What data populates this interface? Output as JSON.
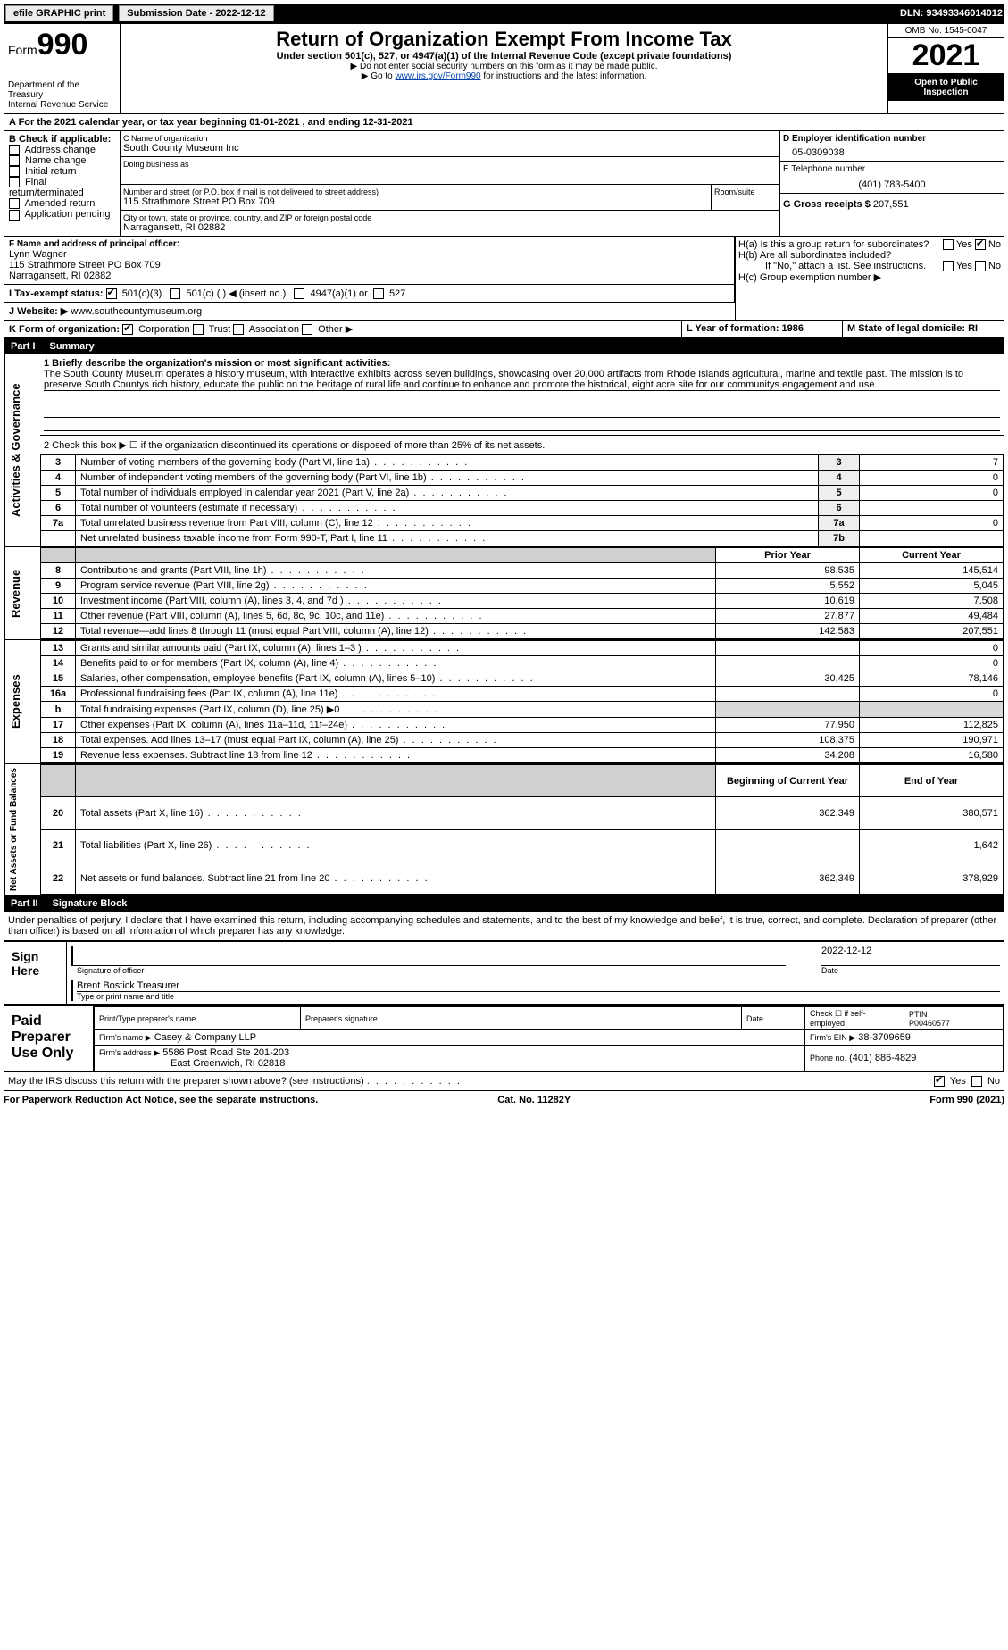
{
  "topbar": {
    "efile": "efile GRAPHIC print",
    "subdate_label": "Submission Date - 2022-12-12",
    "dln": "DLN: 93493346014012"
  },
  "header": {
    "form_label": "Form",
    "form_num": "990",
    "title": "Return of Organization Exempt From Income Tax",
    "subtitle": "Under section 501(c), 527, or 4947(a)(1) of the Internal Revenue Code (except private foundations)",
    "note1": "▶ Do not enter social security numbers on this form as it may be made public.",
    "note2_prefix": "▶ Go to ",
    "note2_link": "www.irs.gov/Form990",
    "note2_suffix": " for instructions and the latest information.",
    "omb": "OMB No. 1545-0047",
    "year": "2021",
    "open": "Open to Public Inspection",
    "dept": "Department of the Treasury",
    "irs": "Internal Revenue Service"
  },
  "sectionA": {
    "label": "A For the 2021 calendar year, or tax year beginning 01-01-2021    , and ending 12-31-2021"
  },
  "sectionB": {
    "label": "B Check if applicable:",
    "opts": [
      "Address change",
      "Name change",
      "Initial return",
      "Final return/terminated",
      "Amended return",
      "Application pending"
    ]
  },
  "sectionC": {
    "name_label": "C Name of organization",
    "name": "South County Museum Inc",
    "dba_label": "Doing business as",
    "addr_label": "Number and street (or P.O. box if mail is not delivered to street address)",
    "room_label": "Room/suite",
    "addr": "115 Strathmore Street PO Box 709",
    "city_label": "City or town, state or province, country, and ZIP or foreign postal code",
    "city": "Narragansett, RI  02882"
  },
  "sectionD": {
    "label": "D Employer identification number",
    "val": "05-0309038"
  },
  "sectionE": {
    "label": "E Telephone number",
    "val": "(401) 783-5400"
  },
  "sectionG": {
    "label": "G Gross receipts $",
    "val": "207,551"
  },
  "sectionF": {
    "label": "F Name and address of principal officer:",
    "name": "Lynn Wagner",
    "addr1": "115 Strathmore Street PO Box 709",
    "addr2": "Narragansett, RI  02882"
  },
  "sectionH": {
    "a": "H(a)  Is this a group return for subordinates?",
    "b": "H(b)  Are all subordinates included?",
    "bnote": "If \"No,\" attach a list. See instructions.",
    "c": "H(c)  Group exemption number ▶",
    "yes": "Yes",
    "no": "No"
  },
  "sectionI": {
    "label": "I    Tax-exempt status:",
    "t1": "501(c)(3)",
    "t2": "501(c) (  ) ◀ (insert no.)",
    "t3": "4947(a)(1) or",
    "t4": "527"
  },
  "sectionJ": {
    "label": "J    Website: ▶",
    "val": "www.southcountymuseum.org"
  },
  "sectionK": {
    "label": "K Form of organization:",
    "o1": "Corporation",
    "o2": "Trust",
    "o3": "Association",
    "o4": "Other ▶"
  },
  "sectionL": {
    "label": "L Year of formation: 1986"
  },
  "sectionM": {
    "label": "M State of legal domicile: RI"
  },
  "part1": {
    "num": "Part I",
    "title": "Summary"
  },
  "summary": {
    "line1_label": "1 Briefly describe the organization's mission or most significant activities:",
    "line1_text": "The South County Museum operates a history museum, with interactive exhibits across seven buildings, showcasing over 20,000 artifacts from Rhode Islands agricultural, marine and textile past. The mission is to preserve South Countys rich history, educate the public on the heritage of rural life and continue to enhance and promote the historical, eight acre site for our communitys engagement and use.",
    "line2": "2  Check this box ▶ ☐ if the organization discontinued its operations or disposed of more than 25% of its net assets.",
    "rows_ag": [
      {
        "n": "3",
        "label": "Number of voting members of the governing body (Part VI, line 1a)",
        "box": "3",
        "val": "7"
      },
      {
        "n": "4",
        "label": "Number of independent voting members of the governing body (Part VI, line 1b)",
        "box": "4",
        "val": "0"
      },
      {
        "n": "5",
        "label": "Total number of individuals employed in calendar year 2021 (Part V, line 2a)",
        "box": "5",
        "val": "0"
      },
      {
        "n": "6",
        "label": "Total number of volunteers (estimate if necessary)",
        "box": "6",
        "val": ""
      },
      {
        "n": "7a",
        "label": "Total unrelated business revenue from Part VIII, column (C), line 12",
        "box": "7a",
        "val": "0"
      },
      {
        "n": "",
        "label": "Net unrelated business taxable income from Form 990-T, Part I, line 11",
        "box": "7b",
        "val": ""
      }
    ],
    "col_prior": "Prior Year",
    "col_curr": "Current Year",
    "rows_rev": [
      {
        "n": "8",
        "label": "Contributions and grants (Part VIII, line 1h)",
        "p": "98,535",
        "c": "145,514"
      },
      {
        "n": "9",
        "label": "Program service revenue (Part VIII, line 2g)",
        "p": "5,552",
        "c": "5,045"
      },
      {
        "n": "10",
        "label": "Investment income (Part VIII, column (A), lines 3, 4, and 7d )",
        "p": "10,619",
        "c": "7,508"
      },
      {
        "n": "11",
        "label": "Other revenue (Part VIII, column (A), lines 5, 6d, 8c, 9c, 10c, and 11e)",
        "p": "27,877",
        "c": "49,484"
      },
      {
        "n": "12",
        "label": "Total revenue—add lines 8 through 11 (must equal Part VIII, column (A), line 12)",
        "p": "142,583",
        "c": "207,551"
      }
    ],
    "rows_exp": [
      {
        "n": "13",
        "label": "Grants and similar amounts paid (Part IX, column (A), lines 1–3 )",
        "p": "",
        "c": "0"
      },
      {
        "n": "14",
        "label": "Benefits paid to or for members (Part IX, column (A), line 4)",
        "p": "",
        "c": "0"
      },
      {
        "n": "15",
        "label": "Salaries, other compensation, employee benefits (Part IX, column (A), lines 5–10)",
        "p": "30,425",
        "c": "78,146"
      },
      {
        "n": "16a",
        "label": "Professional fundraising fees (Part IX, column (A), line 11e)",
        "p": "",
        "c": "0"
      },
      {
        "n": "b",
        "label": "Total fundraising expenses (Part IX, column (D), line 25) ▶0",
        "p": "SHADE",
        "c": "SHADE"
      },
      {
        "n": "17",
        "label": "Other expenses (Part IX, column (A), lines 11a–11d, 11f–24e)",
        "p": "77,950",
        "c": "112,825"
      },
      {
        "n": "18",
        "label": "Total expenses. Add lines 13–17 (must equal Part IX, column (A), line 25)",
        "p": "108,375",
        "c": "190,971"
      },
      {
        "n": "19",
        "label": "Revenue less expenses. Subtract line 18 from line 12",
        "p": "34,208",
        "c": "16,580"
      }
    ],
    "col_boy": "Beginning of Current Year",
    "col_eoy": "End of Year",
    "rows_na": [
      {
        "n": "20",
        "label": "Total assets (Part X, line 16)",
        "p": "362,349",
        "c": "380,571"
      },
      {
        "n": "21",
        "label": "Total liabilities (Part X, line 26)",
        "p": "",
        "c": "1,642"
      },
      {
        "n": "22",
        "label": "Net assets or fund balances. Subtract line 21 from line 20",
        "p": "362,349",
        "c": "378,929"
      }
    ]
  },
  "sidetabs": {
    "ag": "Activities & Governance",
    "rev": "Revenue",
    "exp": "Expenses",
    "na": "Net Assets or Fund Balances"
  },
  "part2": {
    "num": "Part II",
    "title": "Signature Block",
    "decl": "Under penalties of perjury, I declare that I have examined this return, including accompanying schedules and statements, and to the best of my knowledge and belief, it is true, correct, and complete. Declaration of preparer (other than officer) is based on all information of which preparer has any knowledge."
  },
  "sign": {
    "here": "Sign Here",
    "sigoff": "Signature of officer",
    "date_label": "Date",
    "date": "2022-12-12",
    "name": "Brent Bostick Treasurer",
    "type_label": "Type or print name and title"
  },
  "paid": {
    "title": "Paid Preparer Use Only",
    "c1": "Print/Type preparer's name",
    "c2": "Preparer's signature",
    "c3": "Date",
    "c4": "Check ☐ if self-employed",
    "c5": "PTIN",
    "ptin": "P00460577",
    "firm_label": "Firm's name   ▶",
    "firm": "Casey & Company LLP",
    "ein_label": "Firm's EIN ▶",
    "ein": "38-3709659",
    "addr_label": "Firm's address ▶",
    "addr1": "5586 Post Road Ste 201-203",
    "addr2": "East Greenwich, RI  02818",
    "phone_label": "Phone no.",
    "phone": "(401) 886-4829"
  },
  "discuss": {
    "label": "May the IRS discuss this return with the preparer shown above? (see instructions)",
    "yes": "Yes",
    "no": "No"
  },
  "footer": {
    "l": "For Paperwork Reduction Act Notice, see the separate instructions.",
    "m": "Cat. No. 11282Y",
    "r": "Form 990 (2021)"
  }
}
